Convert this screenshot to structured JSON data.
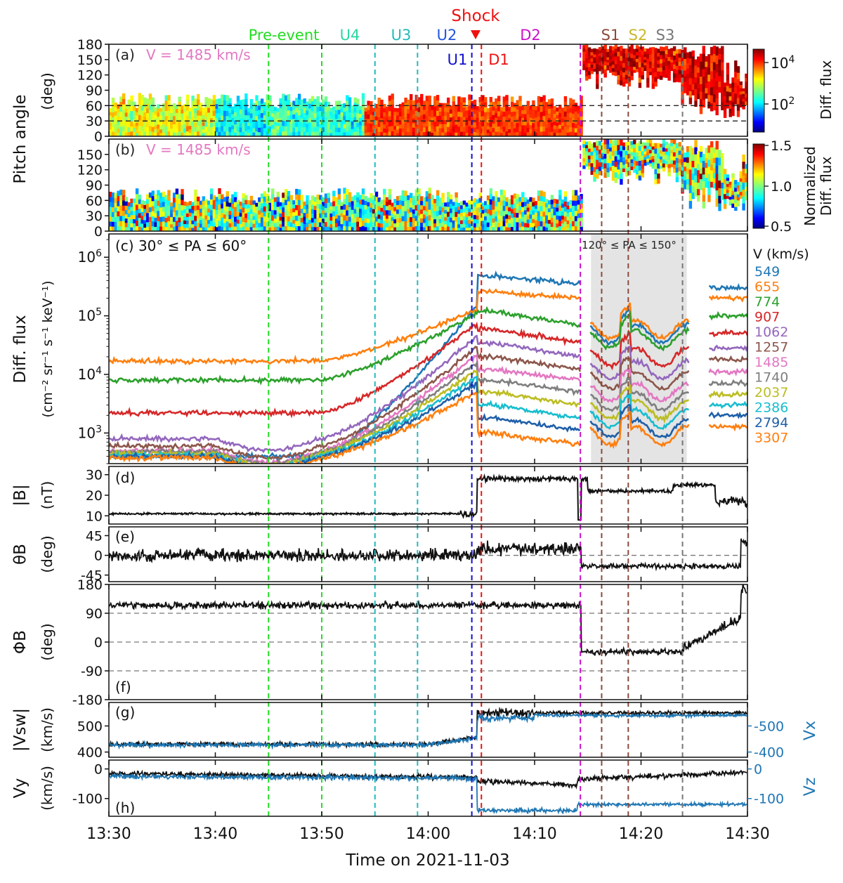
{
  "figure": {
    "shock_label": "Shock",
    "xlabel": "Time on 2021-11-03",
    "x_ticks": [
      "13:30",
      "13:40",
      "13:50",
      "14:00",
      "14:10",
      "14:20",
      "14:30"
    ],
    "x_range_min": [
      0,
      60
    ],
    "shock_time_min": 34.6
  },
  "interval_lines": [
    {
      "label": "Pre-event",
      "t": 15.0,
      "color": "#22dd22"
    },
    {
      "label": "U4",
      "t": 20.0,
      "color": "#22dd22",
      "label_color": "#2ad6a2"
    },
    {
      "label": "U3",
      "t": 25.0,
      "color": "#22bbbb"
    },
    {
      "label": "U2",
      "t": 29.0,
      "color": "#22bbbb",
      "label_color": "#2255dd"
    },
    {
      "label": "U1",
      "t": 34.1,
      "color": "#1111cc"
    },
    {
      "label": "D1",
      "t": 35.0,
      "color": "#ee1111"
    },
    {
      "label": "D2",
      "t": 44.3,
      "color": "#cc11cc"
    },
    {
      "label": "S1",
      "t": 46.3,
      "color": "#8b4a3a"
    },
    {
      "label": "S2",
      "t": 48.8,
      "color": "#8b4a3a",
      "label_color": "#c9b82a"
    },
    {
      "label": "S3",
      "t": 53.9,
      "color": "#777777"
    }
  ],
  "chart_data": [
    {
      "panel": "a",
      "type": "heatmap",
      "label": "(a)",
      "annotation": "V = 1485 km/s",
      "ylabel": "Pitch angle",
      "ylabel2": "(deg)",
      "y_ticks": [
        "0",
        "30",
        "60",
        "90",
        "120",
        "150",
        "180"
      ],
      "ylim": [
        0,
        180
      ],
      "colorbar_label": "Diff. flux",
      "colorbar_ticks": [
        "10^4",
        "10^2"
      ],
      "colorbar_scale": "log",
      "colorbar_range": [
        10,
        30000
      ],
      "ref_lines_deg": [
        30,
        60
      ]
    },
    {
      "panel": "b",
      "type": "heatmap",
      "label": "(b)",
      "annotation": "V = 1485 km/s",
      "y_ticks": [
        "0",
        "30",
        "60",
        "90",
        "120",
        "150"
      ],
      "ylim": [
        0,
        180
      ],
      "colorbar_label": "Normalized",
      "colorbar_label2": "Diff. flux",
      "colorbar_ticks": [
        "1.5",
        "1.0",
        "0.5"
      ],
      "colorbar_range": [
        0.5,
        1.5
      ]
    },
    {
      "panel": "c",
      "type": "line",
      "label": "(c) 30° ≤ PA ≤ 60°",
      "shade_label": "120° ≤ PA ≤ 150°",
      "shade_range_min": [
        45.3,
        54.3
      ],
      "ylabel": "Diff. flux",
      "ylabel2": "(cm⁻² sr⁻¹ s⁻¹ keV⁻¹)",
      "y_ticks": [
        "10^3",
        "10^4",
        "10^5",
        "10^6"
      ],
      "yscale": "log",
      "ylim": [
        300,
        2500000
      ],
      "legend_title": "V (km/s)",
      "series": [
        {
          "name": "549",
          "color": "#1f77b4",
          "pre": 400,
          "peak": 150000,
          "down": 480000,
          "later": 350000,
          "sheath": 50000,
          "end": 300000
        },
        {
          "name": "655",
          "color": "#ff7f0e",
          "pre": 17000,
          "peak": 130000,
          "down": 260000,
          "later": 200000,
          "sheath": 60000,
          "end": 200000
        },
        {
          "name": "774",
          "color": "#2ca02c",
          "pre": 8000,
          "peak": 110000,
          "down": 120000,
          "later": 70000,
          "sheath": 40000,
          "end": 100000
        },
        {
          "name": "907",
          "color": "#d62728",
          "pre": 2200,
          "peak": 75000,
          "down": 60000,
          "later": 35000,
          "sheath": 20000,
          "end": 50000
        },
        {
          "name": "1062",
          "color": "#9467bd",
          "pre": 800,
          "peak": 45000,
          "down": 35000,
          "later": 20000,
          "sheath": 12000,
          "end": 28000
        },
        {
          "name": "1257",
          "color": "#8c564b",
          "pre": 600,
          "peak": 30000,
          "down": 20000,
          "later": 12000,
          "sheath": 8000,
          "end": 18000
        },
        {
          "name": "1485",
          "color": "#e377c2",
          "pre": 500,
          "peak": 22000,
          "down": 12000,
          "later": 8000,
          "sheath": 5000,
          "end": 11000
        },
        {
          "name": "1740",
          "color": "#7f7f7f",
          "pre": 480,
          "peak": 16000,
          "down": 8000,
          "later": 5000,
          "sheath": 3500,
          "end": 7000
        },
        {
          "name": "2037",
          "color": "#bcbd22",
          "pre": 450,
          "peak": 12000,
          "down": 5000,
          "later": 3000,
          "sheath": 2500,
          "end": 4500
        },
        {
          "name": "2386",
          "color": "#17becf",
          "pre": 420,
          "peak": 9000,
          "down": 3000,
          "later": 1800,
          "sheath": 1800,
          "end": 3000
        },
        {
          "name": "2794",
          "color": "#1f5fa8",
          "pre": 400,
          "peak": 7000,
          "down": 1800,
          "later": 1100,
          "sheath": 1200,
          "end": 2000
        },
        {
          "name": "3307",
          "color": "#ff7f0e",
          "pre": 380,
          "peak": 5000,
          "down": 1000,
          "later": 650,
          "sheath": 900,
          "end": 1300
        }
      ]
    },
    {
      "panel": "d",
      "type": "line",
      "label": "(d)",
      "ylabel": "|B|",
      "ylabel2": "(nT)",
      "y_ticks": [
        "10",
        "20",
        "30"
      ],
      "ylim": [
        6,
        34
      ],
      "upstream_nT": 11,
      "downstream_nT": 28
    },
    {
      "panel": "e",
      "type": "line",
      "label": "(e)",
      "ylabel": "θB",
      "ylabel2": "(deg)",
      "y_ticks": [
        "-45",
        "0",
        "45"
      ],
      "ylim": [
        -60,
        65
      ],
      "upstream_deg": 0,
      "downstream_deg": 15,
      "later_deg": -25
    },
    {
      "panel": "f",
      "type": "line",
      "label": "(f)",
      "ylabel": "ΦB",
      "ylabel2": "(deg)",
      "y_ticks": [
        "-180",
        "-90",
        "0",
        "90",
        "180"
      ],
      "ylim": [
        -180,
        180
      ],
      "upstream_deg": 115,
      "later_deg": -30
    },
    {
      "panel": "g",
      "type": "line",
      "label": "(g)",
      "ylabel": "|Vsw|",
      "ylabel2": "(km/s)",
      "y_ticks": [
        "400",
        "500"
      ],
      "ylim": [
        380,
        590
      ],
      "right_label": "Vx",
      "right_ticks": [
        "-500",
        "-400"
      ],
      "series_names": [
        "|Vsw|",
        "Vx"
      ],
      "upstream_kms": 430,
      "downstream_kms": 560
    },
    {
      "panel": "h",
      "type": "line",
      "label": "(h)",
      "ylabel": "Vy",
      "ylabel2": "(km/s)",
      "y_ticks": [
        "-100",
        "0"
      ],
      "ylim": [
        -160,
        30
      ],
      "right_label": "Vz",
      "right_ticks": [
        "0",
        "-100"
      ],
      "series_names": [
        "Vy",
        "Vz"
      ]
    }
  ]
}
